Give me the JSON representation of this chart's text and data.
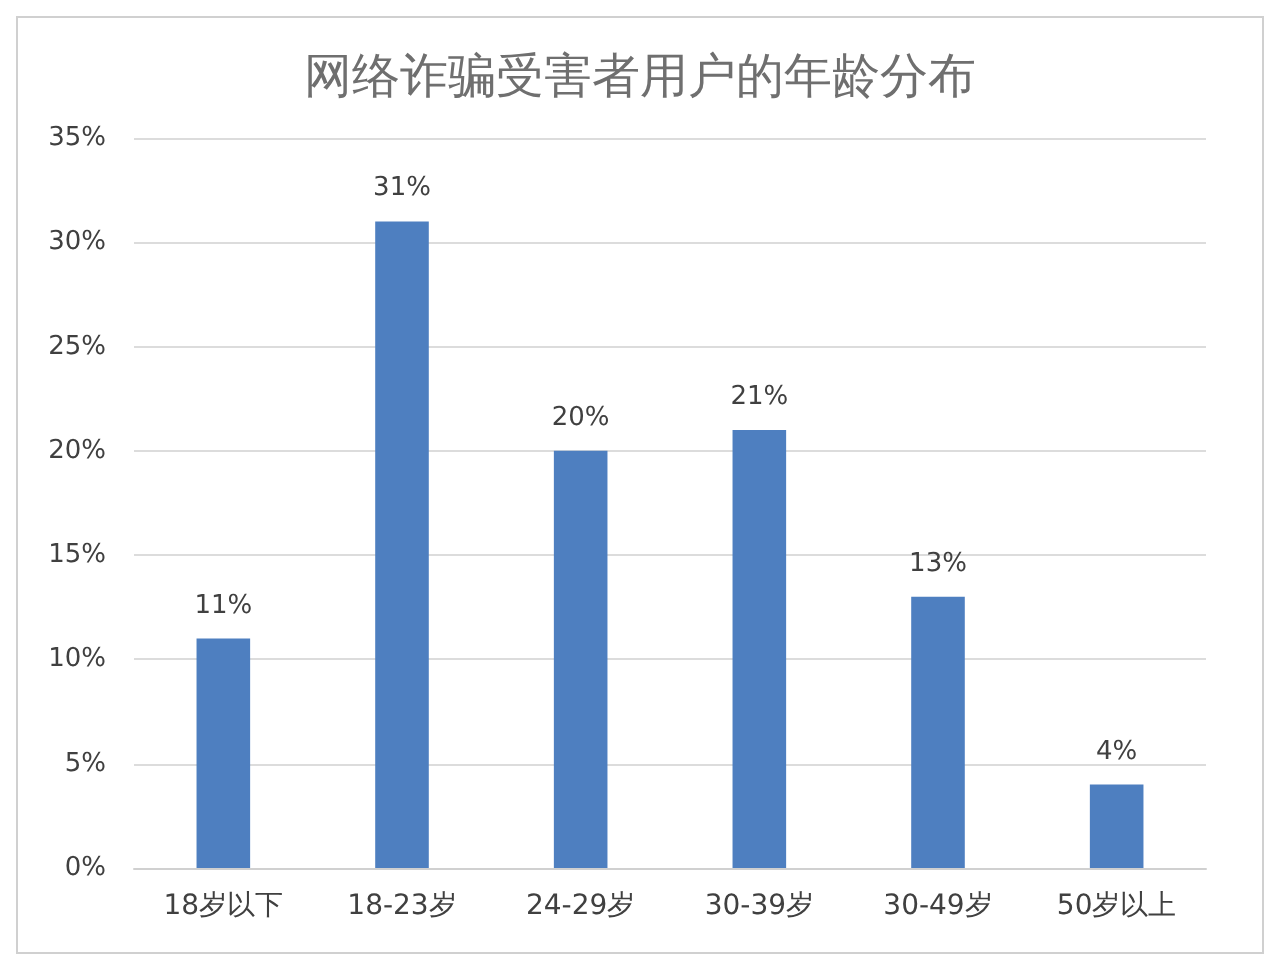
{
  "chart_data": {
    "type": "bar",
    "title": "网络诈骗受害者用户的年龄分布",
    "categories": [
      "18岁以下",
      "18-23岁",
      "24-29岁",
      "30-39岁",
      "30-49岁",
      "50岁以上"
    ],
    "values": [
      11,
      31,
      20,
      21,
      13,
      4
    ],
    "value_labels": [
      "11%",
      "31%",
      "20%",
      "21%",
      "13%",
      "4%"
    ],
    "color": "#4e7fc0",
    "ylim": [
      0,
      35
    ],
    "yticks": [
      {
        "value": 0,
        "label": "0%"
      },
      {
        "value": 5,
        "label": "5%"
      },
      {
        "value": 10,
        "label": "10%"
      },
      {
        "value": 15,
        "label": "15%"
      },
      {
        "value": 20,
        "label": "20%"
      },
      {
        "value": 25,
        "label": "25%"
      },
      {
        "value": 30,
        "label": "30%"
      },
      {
        "value": 35,
        "label": "35%"
      }
    ],
    "grid": "y"
  }
}
